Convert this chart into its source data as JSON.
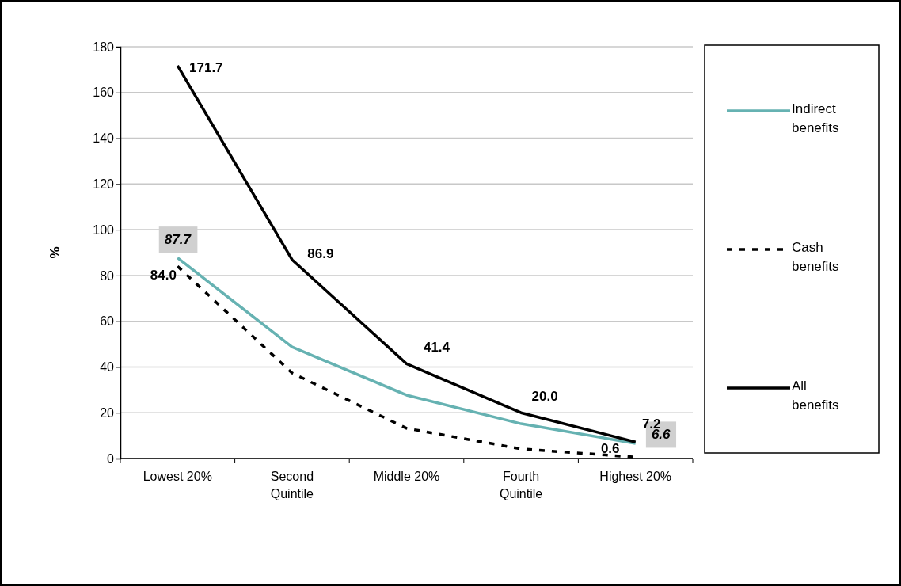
{
  "chart_data": {
    "type": "line",
    "ylabel": "%",
    "categories": [
      "Lowest 20%",
      "Second Quintile",
      "Middle 20%",
      "Fourth Quintile",
      "Highest 20%"
    ],
    "ylim": [
      0,
      180
    ],
    "yticks": [
      0,
      20,
      40,
      60,
      80,
      100,
      120,
      140,
      160,
      180
    ],
    "grid": "y",
    "legend": "right",
    "marker": "none",
    "series": [
      {
        "name": "Indirect benefits",
        "color": "#66b2b2",
        "line_style": "solid",
        "values": [
          87.7,
          48.8,
          27.7,
          15.2,
          6.6
        ],
        "value_labels": [
          "87.7",
          null,
          null,
          null,
          "6.6"
        ]
      },
      {
        "name": "Cash benefits",
        "color": "#000000",
        "line_style": "dashed",
        "values": [
          84.0,
          37.4,
          13.2,
          4.2,
          0.6
        ],
        "value_labels": [
          "84.0",
          null,
          null,
          null,
          "0.6"
        ]
      },
      {
        "name": "All benefits",
        "color": "#000000",
        "line_style": "solid",
        "values": [
          171.7,
          86.9,
          41.4,
          20.0,
          7.2
        ],
        "value_labels": [
          "171.7",
          "86.9",
          "41.4",
          "20.0",
          "7.2"
        ]
      }
    ]
  }
}
